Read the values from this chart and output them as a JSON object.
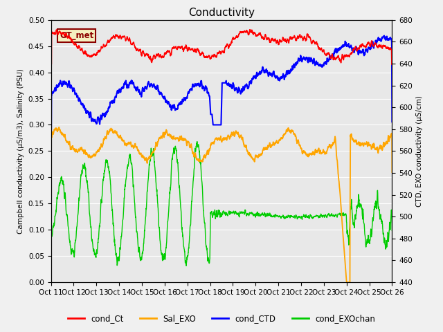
{
  "title": "Conductivity",
  "ylabel_left": "Campbell conductivity (μS/m3), Salinity (PSU)",
  "ylabel_right": "CTD, EXO conductivity (μS/cm)",
  "ylim_left": [
    0.0,
    0.5
  ],
  "ylim_right": [
    440,
    680
  ],
  "xtick_labels": [
    "Oct 11",
    "Oct 12",
    "Oct 13",
    "Oct 14",
    "Oct 15",
    "Oct 16",
    "Oct 17",
    "Oct 18",
    "Oct 19",
    "Oct 20",
    "Oct 21",
    "Oct 22",
    "Oct 23",
    "Oct 24",
    "Oct 25",
    "Oct 26"
  ],
  "annotation_text": "GT_met",
  "annotation_color": "#8B0000",
  "annotation_bg": "#F5F0C0",
  "bg_color": "#E8E8E8",
  "legend_items": [
    "cond_Ct",
    "Sal_EXO",
    "cond_CTD",
    "cond_EXOchan"
  ],
  "legend_colors": [
    "#FF0000",
    "#FFA500",
    "#0000FF",
    "#00CC00"
  ],
  "grid_color": "#FFFFFF",
  "title_fontsize": 11,
  "label_fontsize": 7.5,
  "tick_fontsize": 7.5
}
